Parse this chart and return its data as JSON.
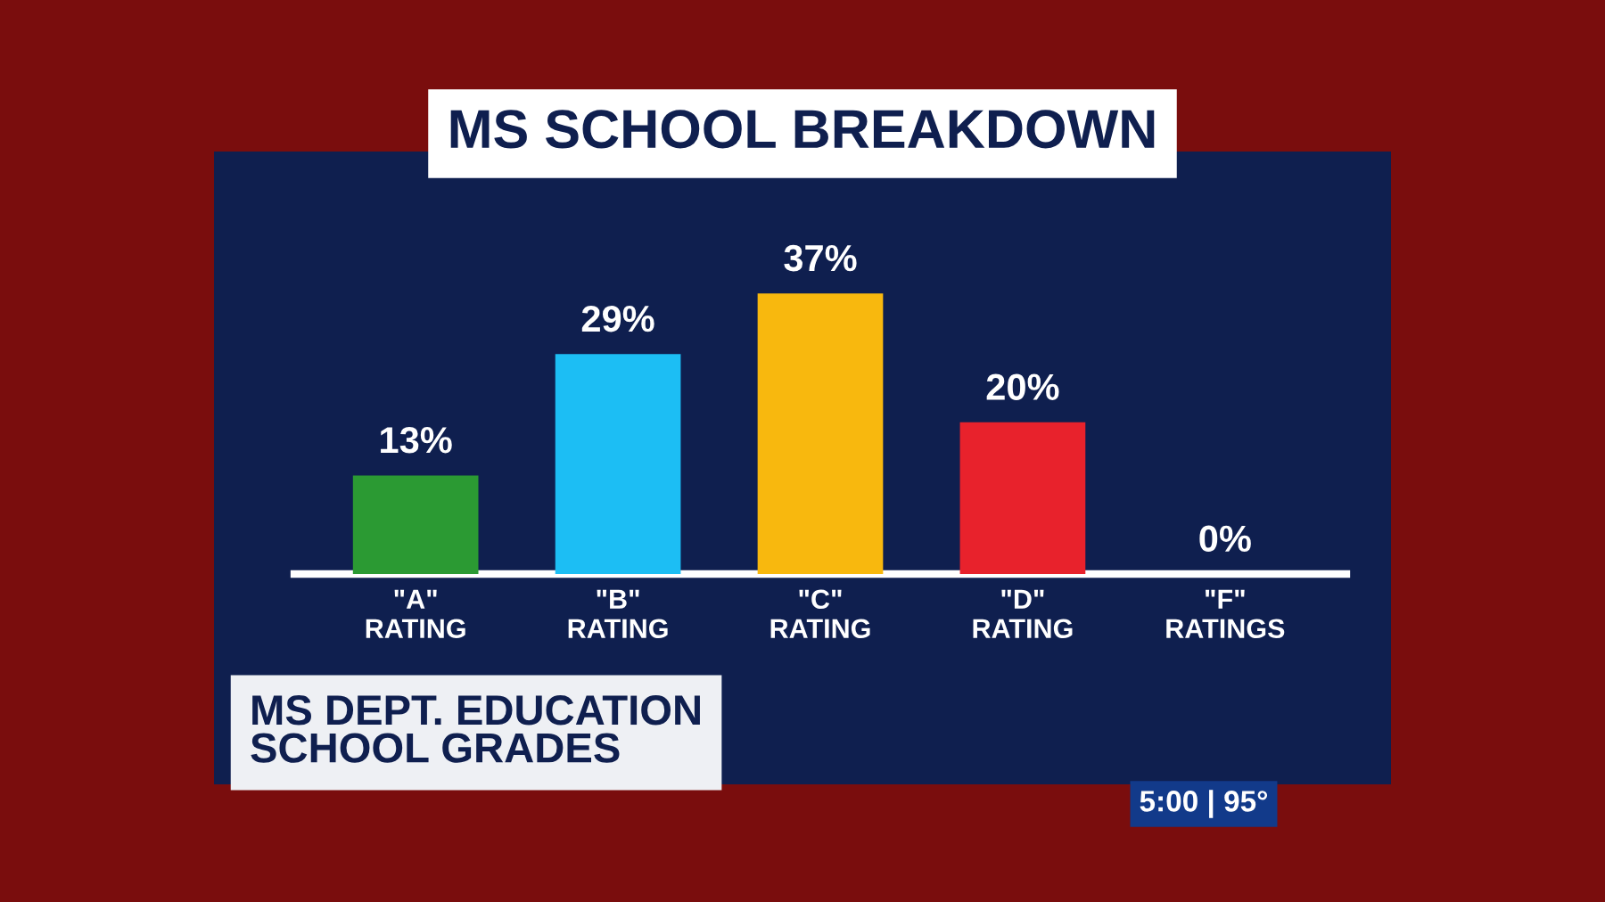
{
  "chart_data": {
    "type": "bar",
    "title": "MS SCHOOL BREAKDOWN",
    "categories": [
      "\"A\"\nRATING",
      "\"B\"\nRATING",
      "\"C\"\nRATING",
      "\"D\"\nRATING",
      "\"F\"\nRATINGS"
    ],
    "values": [
      13,
      29,
      37,
      20,
      0
    ],
    "colors": [
      "#2b9a33",
      "#1cbef4",
      "#f8b80e",
      "#e8222c",
      "#ffffff"
    ],
    "value_labels": [
      "13%",
      "29%",
      "37%",
      "20%",
      "0%"
    ],
    "annotations": [
      "MS DEPT. EDUCATION\nSCHOOL GRADES",
      "5:00 | 95°"
    ],
    "grid": false,
    "legend": false
  }
}
